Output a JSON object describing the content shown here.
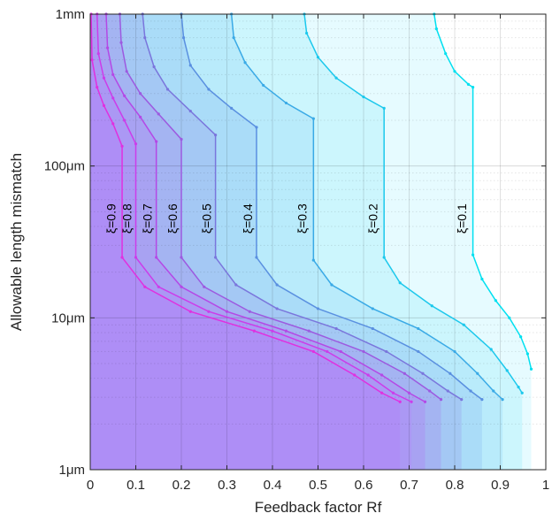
{
  "chart_data": {
    "type": "line",
    "title": "",
    "xlabel": "Feedback factor Rf",
    "ylabel": "Allowable length mismatch",
    "xlim": [
      0,
      1
    ],
    "ylim": [
      1,
      1000
    ],
    "yscale": "log",
    "grid": true,
    "legend": "none",
    "x_ticks": [
      {
        "value": 0,
        "label": "0"
      },
      {
        "value": 0.1,
        "label": "0.1"
      },
      {
        "value": 0.2,
        "label": "0.2"
      },
      {
        "value": 0.3,
        "label": "0.3"
      },
      {
        "value": 0.4,
        "label": "0.4"
      },
      {
        "value": 0.5,
        "label": "0.5"
      },
      {
        "value": 0.6,
        "label": "0.6"
      },
      {
        "value": 0.7,
        "label": "0.7"
      },
      {
        "value": 0.8,
        "label": "0.8"
      },
      {
        "value": 0.9,
        "label": "0.9"
      },
      {
        "value": 1,
        "label": "1"
      }
    ],
    "y_ticks": [
      {
        "value": 1,
        "label": "1μm"
      },
      {
        "value": 10,
        "label": "10μm"
      },
      {
        "value": 100,
        "label": "100μm"
      },
      {
        "value": 1000,
        "label": "1mm"
      }
    ],
    "series": [
      {
        "name": "ξ=0.1",
        "color": "#00e0f0",
        "fill": "#e6fbff",
        "points": [
          [
            0.755,
            1000
          ],
          [
            0.76,
            800
          ],
          [
            0.78,
            550
          ],
          [
            0.8,
            420
          ],
          [
            0.83,
            345
          ],
          [
            0.84,
            330
          ],
          [
            0.84,
            26
          ],
          [
            0.86,
            18
          ],
          [
            0.89,
            13
          ],
          [
            0.92,
            10
          ],
          [
            0.945,
            7.5
          ],
          [
            0.96,
            5.8
          ],
          [
            0.968,
            4.6
          ]
        ]
      },
      {
        "name": "ξ=0.2",
        "color": "#1cc8ec",
        "fill": "#ccf6fd",
        "points": [
          [
            0.47,
            1000
          ],
          [
            0.475,
            750
          ],
          [
            0.5,
            520
          ],
          [
            0.54,
            380
          ],
          [
            0.6,
            285
          ],
          [
            0.645,
            240
          ],
          [
            0.645,
            25
          ],
          [
            0.68,
            17
          ],
          [
            0.75,
            12
          ],
          [
            0.82,
            9
          ],
          [
            0.88,
            6.2
          ],
          [
            0.915,
            4.5
          ],
          [
            0.94,
            3.5
          ],
          [
            0.948,
            3.2
          ]
        ]
      },
      {
        "name": "ξ=0.3",
        "color": "#3aaae6",
        "fill": "#b9ebfb",
        "points": [
          [
            0.31,
            1000
          ],
          [
            0.315,
            700
          ],
          [
            0.34,
            480
          ],
          [
            0.38,
            340
          ],
          [
            0.43,
            260
          ],
          [
            0.49,
            205
          ],
          [
            0.49,
            24
          ],
          [
            0.53,
            16.5
          ],
          [
            0.62,
            11.5
          ],
          [
            0.72,
            8.5
          ],
          [
            0.8,
            6
          ],
          [
            0.85,
            4.3
          ],
          [
            0.885,
            3.3
          ],
          [
            0.905,
            2.9
          ]
        ]
      },
      {
        "name": "ξ=0.4",
        "color": "#5a90e0",
        "fill": "#aadcf8",
        "points": [
          [
            0.2,
            1000
          ],
          [
            0.205,
            700
          ],
          [
            0.22,
            460
          ],
          [
            0.26,
            320
          ],
          [
            0.31,
            240
          ],
          [
            0.365,
            180
          ],
          [
            0.365,
            25
          ],
          [
            0.41,
            16.5
          ],
          [
            0.5,
            11.5
          ],
          [
            0.62,
            8.5
          ],
          [
            0.72,
            6
          ],
          [
            0.79,
            4.3
          ],
          [
            0.835,
            3.3
          ],
          [
            0.86,
            2.9
          ]
        ]
      },
      {
        "name": "ξ=0.5",
        "color": "#7a76dc",
        "fill": "#a4c8f4",
        "points": [
          [
            0.115,
            1000
          ],
          [
            0.12,
            700
          ],
          [
            0.14,
            450
          ],
          [
            0.17,
            320
          ],
          [
            0.22,
            230
          ],
          [
            0.275,
            160
          ],
          [
            0.275,
            25
          ],
          [
            0.32,
            16.5
          ],
          [
            0.41,
            11.5
          ],
          [
            0.54,
            8.5
          ],
          [
            0.65,
            6
          ],
          [
            0.73,
            4.3
          ],
          [
            0.785,
            3.3
          ],
          [
            0.815,
            2.9
          ]
        ]
      },
      {
        "name": "ξ=0.6",
        "color": "#9c5ae0",
        "fill": "#a4b4f2",
        "points": [
          [
            0.065,
            1000
          ],
          [
            0.068,
            650
          ],
          [
            0.08,
            420
          ],
          [
            0.11,
            300
          ],
          [
            0.15,
            220
          ],
          [
            0.2,
            150
          ],
          [
            0.2,
            25
          ],
          [
            0.25,
            16
          ],
          [
            0.35,
            11
          ],
          [
            0.48,
            8.2
          ],
          [
            0.6,
            6
          ],
          [
            0.69,
            4.3
          ],
          [
            0.745,
            3.3
          ],
          [
            0.77,
            2.9
          ]
        ]
      },
      {
        "name": "ξ=0.7",
        "color": "#b448e6",
        "fill": "#a8a2f2",
        "points": [
          [
            0.035,
            1000
          ],
          [
            0.038,
            600
          ],
          [
            0.05,
            400
          ],
          [
            0.075,
            290
          ],
          [
            0.11,
            210
          ],
          [
            0.145,
            145
          ],
          [
            0.145,
            25
          ],
          [
            0.2,
            16
          ],
          [
            0.3,
            11
          ],
          [
            0.43,
            8.2
          ],
          [
            0.55,
            6
          ],
          [
            0.64,
            4.2
          ],
          [
            0.7,
            3.2
          ],
          [
            0.735,
            2.8
          ]
        ]
      },
      {
        "name": "ξ=0.8",
        "color": "#cc3cea",
        "fill": "#ab98f4",
        "points": [
          [
            0.015,
            1000
          ],
          [
            0.018,
            550
          ],
          [
            0.03,
            380
          ],
          [
            0.05,
            280
          ],
          [
            0.075,
            200
          ],
          [
            0.1,
            140
          ],
          [
            0.1,
            25
          ],
          [
            0.15,
            16
          ],
          [
            0.26,
            11
          ],
          [
            0.4,
            8.2
          ],
          [
            0.52,
            6
          ],
          [
            0.61,
            4.2
          ],
          [
            0.665,
            3.2
          ],
          [
            0.705,
            2.8
          ]
        ]
      },
      {
        "name": "ξ=0.9",
        "color": "#e030e0",
        "fill": "#ae8ef6",
        "points": [
          [
            0.002,
            1000
          ],
          [
            0.004,
            500
          ],
          [
            0.015,
            330
          ],
          [
            0.03,
            250
          ],
          [
            0.05,
            190
          ],
          [
            0.07,
            135
          ],
          [
            0.07,
            25
          ],
          [
            0.12,
            16
          ],
          [
            0.22,
            11
          ],
          [
            0.36,
            8.2
          ],
          [
            0.49,
            6
          ],
          [
            0.58,
            4.2
          ],
          [
            0.64,
            3.2
          ],
          [
            0.68,
            2.8
          ]
        ]
      }
    ],
    "series_labels": [
      {
        "name": "ξ=0.9",
        "x": 0.055,
        "y": 45
      },
      {
        "name": "ξ=0.8",
        "x": 0.09,
        "y": 45
      },
      {
        "name": "ξ=0.7",
        "x": 0.135,
        "y": 45
      },
      {
        "name": "ξ=0.6",
        "x": 0.19,
        "y": 45
      },
      {
        "name": "ξ=0.5",
        "x": 0.265,
        "y": 45
      },
      {
        "name": "ξ=0.4",
        "x": 0.355,
        "y": 45
      },
      {
        "name": "ξ=0.3",
        "x": 0.475,
        "y": 45
      },
      {
        "name": "ξ=0.2",
        "x": 0.63,
        "y": 45
      },
      {
        "name": "ξ=0.1",
        "x": 0.825,
        "y": 45
      }
    ]
  }
}
